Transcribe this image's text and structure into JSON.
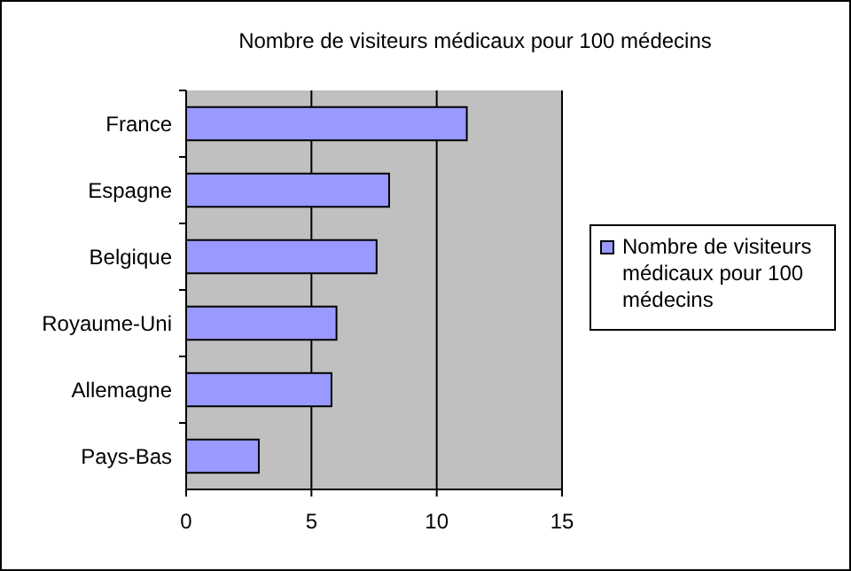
{
  "chart_data": {
    "type": "bar",
    "orientation": "horizontal",
    "title": "Nombre de visiteurs médicaux pour 100 médecins",
    "categories": [
      "France",
      "Espagne",
      "Belgique",
      "Royaume-Uni",
      "Allemagne",
      "Pays-Bas"
    ],
    "series": [
      {
        "name": "Nombre de visiteurs médicaux pour 100 médecins",
        "color": "#9999ff",
        "values": [
          11.2,
          8.1,
          7.6,
          6.0,
          5.8,
          2.9
        ]
      }
    ],
    "xlim": [
      0,
      15
    ],
    "xticks": [
      0,
      5,
      10,
      15
    ],
    "grid": "x",
    "legend": "right"
  }
}
